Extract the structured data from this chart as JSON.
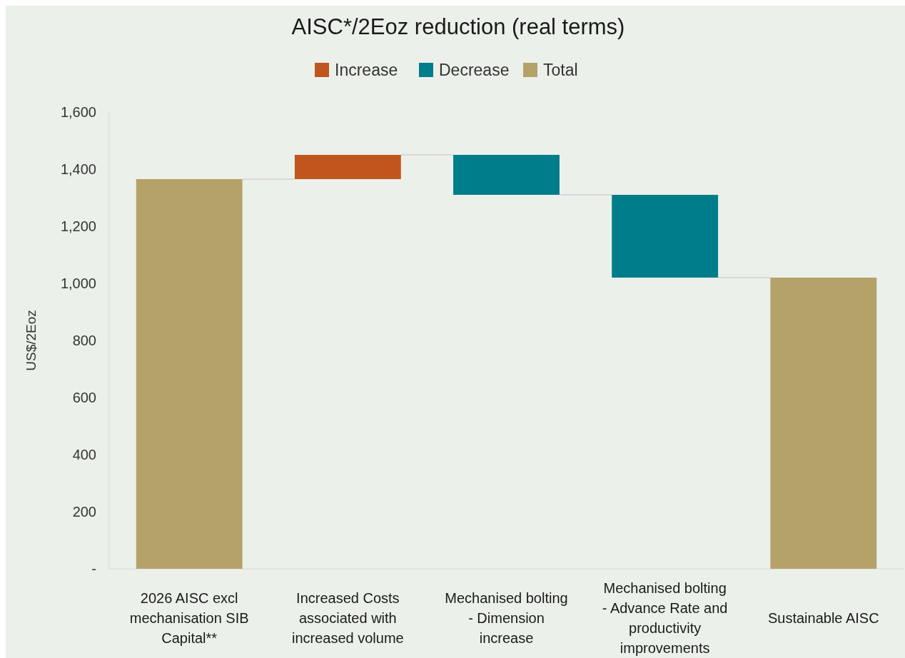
{
  "chart_data": {
    "type": "bar",
    "title": "AISC*/2Eoz reduction (real terms)",
    "ylabel": "US$/2Eoz",
    "categories": [
      "2026 AISC excl mechanisation SIB Capital**",
      "Increased  Costs associated with increased volume",
      "Mechanised bolting - Dimension increase",
      "Mechanised bolting - Advance Rate and productivity improvements",
      "Sustainable AISC"
    ],
    "series": [
      {
        "name": "Increase",
        "color": "#c0561e",
        "values": [
          null,
          85,
          null,
          null,
          null
        ],
        "base": [
          null,
          1365,
          null,
          null,
          null
        ]
      },
      {
        "name": "Decrease",
        "color": "#007d8a",
        "values": [
          null,
          null,
          -140,
          -290,
          null
        ],
        "base": [
          null,
          null,
          1450,
          1310,
          null
        ]
      },
      {
        "name": "Total",
        "color": "#b5a269",
        "values": [
          1365,
          null,
          null,
          null,
          1020
        ],
        "base": [
          0,
          null,
          null,
          null,
          0
        ]
      }
    ],
    "ylim": [
      0,
      1600
    ],
    "yticks": [
      {
        "value": 0,
        "label": "-"
      },
      {
        "value": 200,
        "label": "200"
      },
      {
        "value": 400,
        "label": "400"
      },
      {
        "value": 600,
        "label": "600"
      },
      {
        "value": 800,
        "label": "800"
      },
      {
        "value": 1000,
        "label": "1,000"
      },
      {
        "value": 1200,
        "label": "1,200"
      },
      {
        "value": 1400,
        "label": "1,400"
      },
      {
        "value": 1600,
        "label": "1,600"
      }
    ],
    "grid": false,
    "legend": "top"
  }
}
